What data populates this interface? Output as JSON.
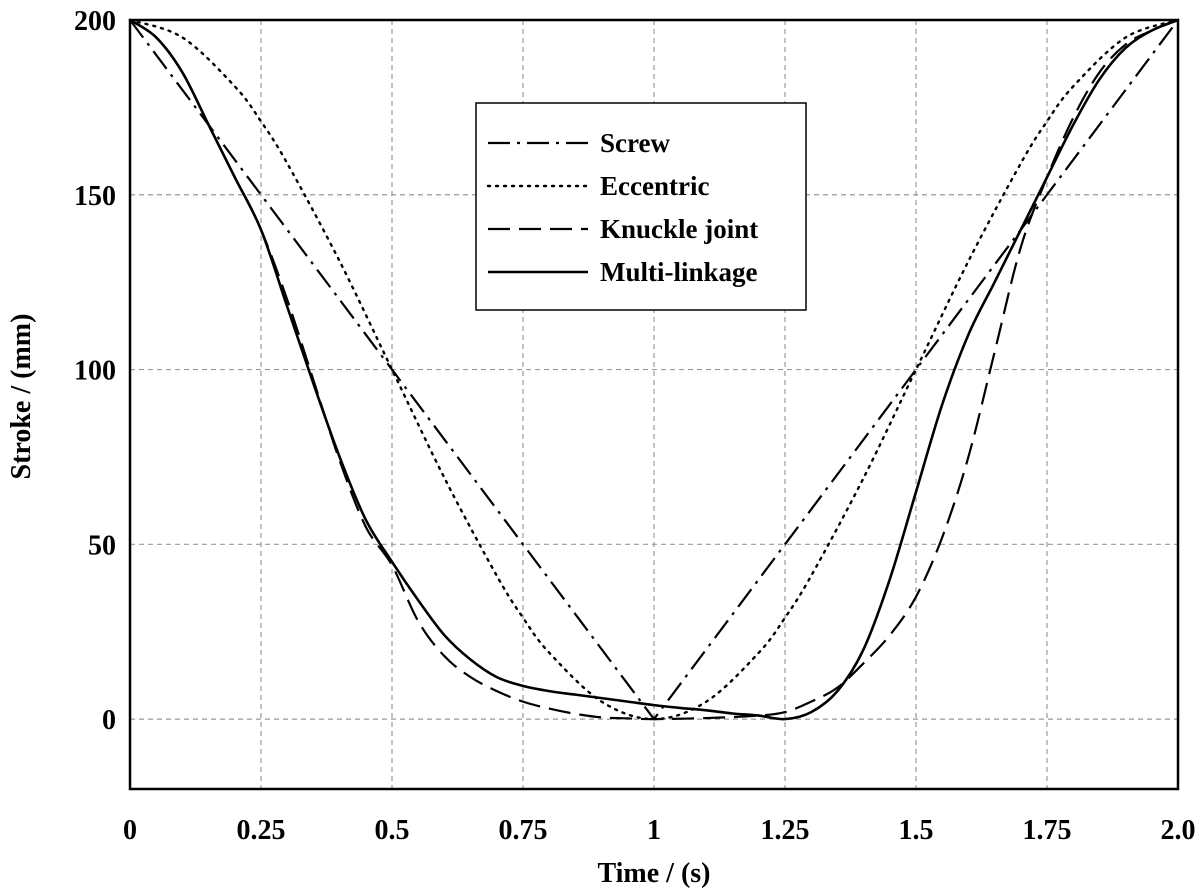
{
  "chart_data": {
    "type": "line",
    "title": "",
    "xlabel": "Time / (s)",
    "ylabel": "Stroke / (mm)",
    "xlim": [
      0,
      2.0
    ],
    "ylim": [
      -20,
      200
    ],
    "grid": true,
    "legend_position": "top-center",
    "x_ticks": [
      {
        "value": 0,
        "label": "0"
      },
      {
        "value": 0.25,
        "label": "0.25"
      },
      {
        "value": 0.5,
        "label": "0.5"
      },
      {
        "value": 0.75,
        "label": "0.75"
      },
      {
        "value": 1,
        "label": "1"
      },
      {
        "value": 1.25,
        "label": "1.25"
      },
      {
        "value": 1.5,
        "label": "1.5"
      },
      {
        "value": 1.75,
        "label": "1.75"
      },
      {
        "value": 2.0,
        "label": "2.0"
      }
    ],
    "y_ticks": [
      {
        "value": 0,
        "label": "0"
      },
      {
        "value": 50,
        "label": "50"
      },
      {
        "value": 100,
        "label": "100"
      },
      {
        "value": 150,
        "label": "150"
      },
      {
        "value": 200,
        "label": "200"
      }
    ],
    "series": [
      {
        "name": "Screw",
        "style": "dash-dot",
        "x": [
          0,
          0.25,
          0.5,
          0.75,
          1.0,
          1.25,
          1.5,
          1.75,
          2.0
        ],
        "y": [
          200,
          150,
          100,
          50,
          0,
          50,
          100,
          150,
          200
        ]
      },
      {
        "name": "Eccentric",
        "style": "dotted",
        "x": [
          0,
          0.1,
          0.2,
          0.25,
          0.3,
          0.4,
          0.5,
          0.6,
          0.7,
          0.75,
          0.8,
          0.9,
          1.0,
          1.1,
          1.2,
          1.25,
          1.3,
          1.4,
          1.5,
          1.6,
          1.7,
          1.75,
          1.8,
          1.9,
          2.0
        ],
        "y": [
          200,
          195,
          181,
          171,
          159,
          131,
          100,
          69,
          41,
          29,
          19,
          5,
          0,
          5,
          19,
          29,
          41,
          69,
          100,
          131,
          159,
          171,
          181,
          195,
          200
        ]
      },
      {
        "name": "Knuckle joint",
        "style": "dashed",
        "x": [
          0,
          0.05,
          0.1,
          0.15,
          0.2,
          0.25,
          0.3,
          0.35,
          0.4,
          0.45,
          0.5,
          0.55,
          0.6,
          0.65,
          0.7,
          0.75,
          0.8,
          0.85,
          0.9,
          0.95,
          1.0,
          1.1,
          1.2,
          1.25,
          1.3,
          1.35,
          1.4,
          1.45,
          1.5,
          1.55,
          1.6,
          1.65,
          1.7,
          1.75,
          1.8,
          1.85,
          1.9,
          1.95,
          2.0
        ],
        "y": [
          200,
          195,
          185,
          170,
          155,
          140,
          120,
          97,
          74,
          55,
          44,
          28,
          18,
          12,
          8,
          5,
          3,
          1.5,
          0.5,
          0.2,
          0,
          0.3,
          1,
          2,
          5,
          9,
          16,
          24,
          35,
          52,
          75,
          105,
          135,
          155,
          172,
          185,
          193,
          197,
          200
        ]
      },
      {
        "name": "Multi-linkage",
        "style": "solid",
        "x": [
          0,
          0.05,
          0.1,
          0.15,
          0.2,
          0.25,
          0.3,
          0.35,
          0.4,
          0.45,
          0.5,
          0.55,
          0.6,
          0.65,
          0.7,
          0.75,
          0.8,
          0.85,
          0.9,
          0.95,
          1.0,
          1.05,
          1.1,
          1.15,
          1.2,
          1.25,
          1.3,
          1.35,
          1.4,
          1.45,
          1.5,
          1.55,
          1.6,
          1.65,
          1.7,
          1.75,
          1.8,
          1.85,
          1.9,
          1.95,
          2.0
        ],
        "y": [
          200,
          195,
          185,
          170,
          155,
          140,
          118,
          96,
          75,
          57,
          45,
          34,
          24,
          17,
          12,
          9.5,
          8,
          7,
          6,
          5,
          4,
          3.2,
          2.5,
          1.6,
          1,
          0,
          2,
          8,
          20,
          40,
          65,
          90,
          110,
          125,
          140,
          155,
          170,
          183,
          192,
          197,
          200
        ]
      }
    ]
  }
}
